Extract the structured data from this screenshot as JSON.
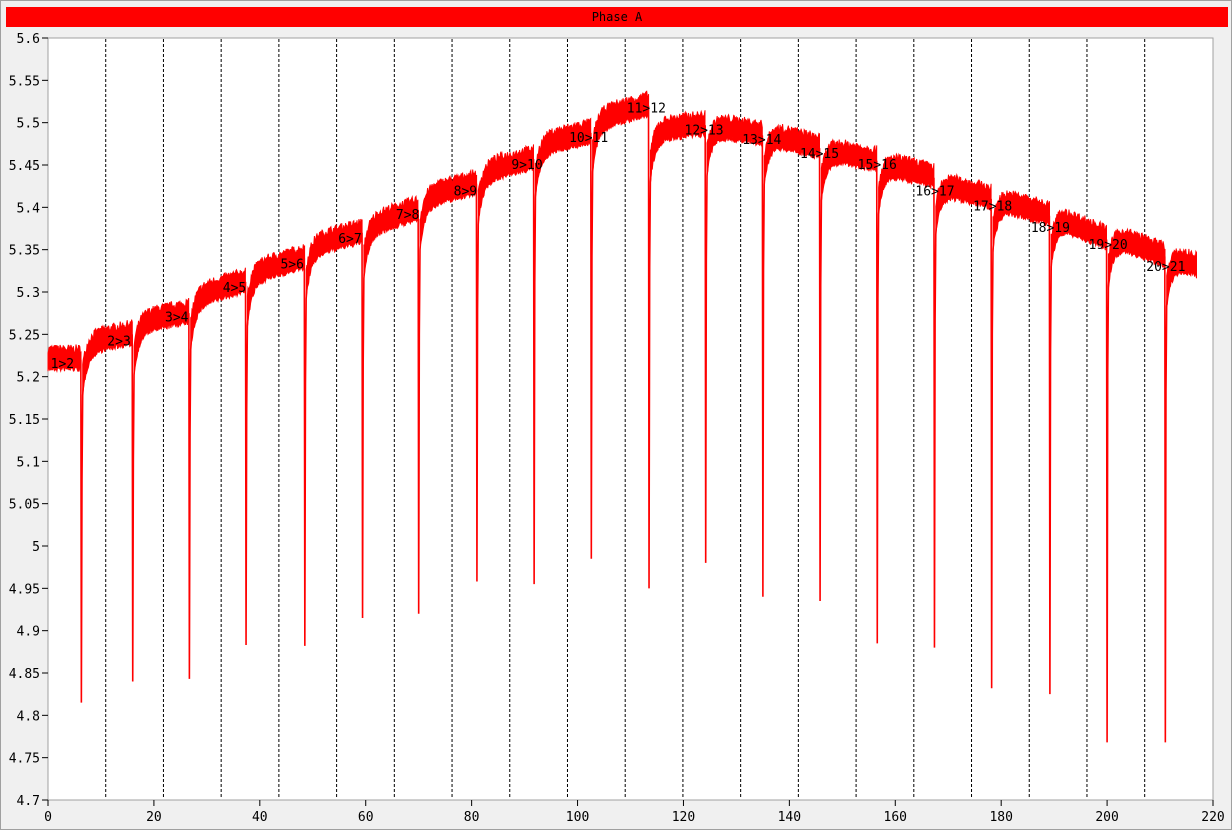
{
  "window": {
    "title": "Phase A"
  },
  "chart_data": {
    "type": "line",
    "title": "Phase A",
    "xlabel": "",
    "ylabel": "",
    "xlim": [
      0,
      220
    ],
    "ylim": [
      4.7,
      5.6
    ],
    "x_ticks": [
      0,
      20,
      40,
      60,
      80,
      100,
      120,
      140,
      160,
      180,
      200,
      220
    ],
    "y_ticks": [
      5.6,
      5.55,
      5.5,
      5.45,
      5.4,
      5.35,
      5.3,
      5.25,
      5.2,
      5.15,
      5.1,
      5.05,
      5,
      4.95,
      4.9,
      4.85,
      4.8,
      4.75,
      4.7
    ],
    "grid": "vertical dashed lines at step boundaries",
    "step_boundaries": [
      10.9,
      21.8,
      32.7,
      43.6,
      54.5,
      65.4,
      76.3,
      87.2,
      98.1,
      109,
      119.9,
      130.8,
      141.7,
      152.6,
      163.5,
      174.4,
      185.3,
      196.2,
      207.1
    ],
    "series_color": "#ff0000",
    "segments": [
      {
        "start": 0,
        "end": 6.3,
        "level_start": 5.22,
        "level_end": 5.22
      },
      {
        "start": 6.3,
        "end": 16,
        "level_start": 5.238,
        "level_end": 5.25,
        "dip_min": 4.815
      },
      {
        "start": 16,
        "end": 26.7,
        "level_start": 5.262,
        "level_end": 5.275,
        "dip_min": 4.84
      },
      {
        "start": 26.7,
        "end": 37.4,
        "level_start": 5.292,
        "level_end": 5.312,
        "dip_min": 4.843
      },
      {
        "start": 37.4,
        "end": 48.5,
        "level_start": 5.32,
        "level_end": 5.34,
        "dip_min": 4.883
      },
      {
        "start": 48.5,
        "end": 59.4,
        "level_start": 5.352,
        "level_end": 5.37,
        "dip_min": 4.882
      },
      {
        "start": 59.4,
        "end": 70,
        "level_start": 5.376,
        "level_end": 5.397,
        "dip_min": 4.915
      },
      {
        "start": 70,
        "end": 81,
        "level_start": 5.41,
        "level_end": 5.428,
        "dip_min": 4.92
      },
      {
        "start": 81,
        "end": 91.8,
        "level_start": 5.44,
        "level_end": 5.457,
        "dip_min": 4.958
      },
      {
        "start": 91.8,
        "end": 102.6,
        "level_start": 5.472,
        "level_end": 5.488,
        "dip_min": 4.955
      },
      {
        "start": 102.6,
        "end": 113.5,
        "level_start": 5.502,
        "level_end": 5.52,
        "dip_min": 4.985
      },
      {
        "start": 113.5,
        "end": 124.2,
        "level_start": 5.49,
        "level_end": 5.497,
        "dip_min": 4.95
      },
      {
        "start": 124.2,
        "end": 135,
        "level_start": 5.497,
        "level_end": 5.485,
        "dip_min": 4.98
      },
      {
        "start": 135,
        "end": 145.8,
        "level_start": 5.487,
        "level_end": 5.47,
        "dip_min": 4.94
      },
      {
        "start": 145.8,
        "end": 156.6,
        "level_start": 5.468,
        "level_end": 5.455,
        "dip_min": 4.935
      },
      {
        "start": 156.6,
        "end": 167.4,
        "level_start": 5.452,
        "level_end": 5.435,
        "dip_min": 4.885
      },
      {
        "start": 167.4,
        "end": 178.2,
        "level_start": 5.428,
        "level_end": 5.41,
        "dip_min": 4.88
      },
      {
        "start": 178.2,
        "end": 189.2,
        "level_start": 5.41,
        "level_end": 5.39,
        "dip_min": 4.832
      },
      {
        "start": 189.2,
        "end": 200,
        "level_start": 5.39,
        "level_end": 5.362,
        "dip_min": 4.825
      },
      {
        "start": 200,
        "end": 211,
        "level_start": 5.367,
        "level_end": 5.342,
        "dip_min": 4.768
      },
      {
        "start": 211,
        "end": 217,
        "level_start": 5.343,
        "level_end": 5.33,
        "dip_min": 4.768
      }
    ],
    "annotations": [
      {
        "text": "1>2",
        "x": 0.5,
        "y": 5.21
      },
      {
        "text": "2>3",
        "x": 11.2,
        "y": 5.237
      },
      {
        "text": "3>4",
        "x": 22.1,
        "y": 5.265
      },
      {
        "text": "4>5",
        "x": 33,
        "y": 5.3
      },
      {
        "text": "5>6",
        "x": 43.9,
        "y": 5.328
      },
      {
        "text": "6>7",
        "x": 54.8,
        "y": 5.358
      },
      {
        "text": "7>8",
        "x": 65.7,
        "y": 5.386
      },
      {
        "text": "8>9",
        "x": 76.6,
        "y": 5.414
      },
      {
        "text": "9>10",
        "x": 87.5,
        "y": 5.445
      },
      {
        "text": "10>11",
        "x": 98.4,
        "y": 5.477
      },
      {
        "text": "11>12",
        "x": 109.3,
        "y": 5.512
      },
      {
        "text": "12>13",
        "x": 120.2,
        "y": 5.486
      },
      {
        "text": "13>14",
        "x": 131.1,
        "y": 5.475
      },
      {
        "text": "14>15",
        "x": 142,
        "y": 5.458
      },
      {
        "text": "15>16",
        "x": 152.9,
        "y": 5.445
      },
      {
        "text": "16>17",
        "x": 163.8,
        "y": 5.414
      },
      {
        "text": "17>18",
        "x": 174.7,
        "y": 5.396
      },
      {
        "text": "18>19",
        "x": 185.6,
        "y": 5.371
      },
      {
        "text": "19>20",
        "x": 196.5,
        "y": 5.351
      },
      {
        "text": "20>21",
        "x": 207.4,
        "y": 5.325
      }
    ]
  }
}
